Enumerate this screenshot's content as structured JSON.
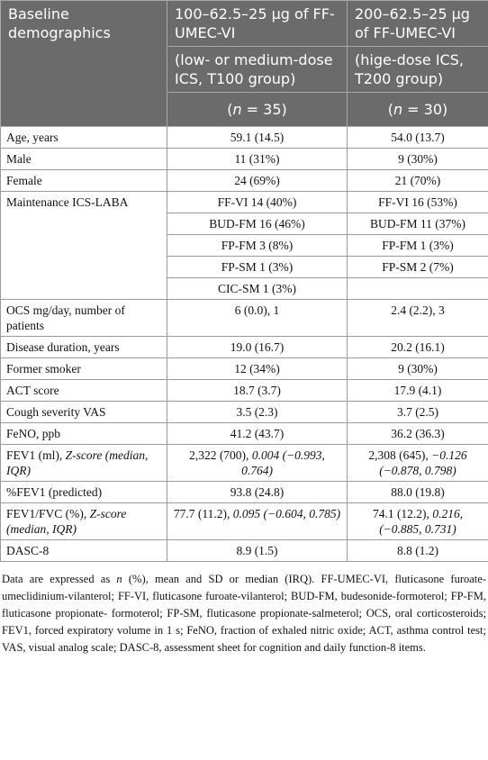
{
  "table": {
    "header": {
      "title": "Baseline demographics",
      "columns": [
        {
          "name": "100–62.5–25 µg of FF-UMEC-VI",
          "group": "(low- or medium-dose ICS, T100 group)",
          "n": [
            "(",
            {
              "italic": "n"
            },
            " = 35)"
          ]
        },
        {
          "name": "200–62.5–25 µg of FF-UMEC-VI",
          "group": "(hige-dose ICS, T200 group)",
          "n": [
            "(",
            {
              "italic": "n"
            },
            " = 30)"
          ]
        }
      ]
    },
    "rows": [
      [
        "Age, years",
        "59.1 (14.5)",
        "54.0 (13.7)"
      ],
      [
        "Male",
        "11 (31%)",
        "9 (30%)"
      ],
      [
        "Female",
        "24 (69%)",
        "21 (70%)"
      ],
      [
        "Maintenance ICS-LABA",
        {
          "lines": [
            "FF-VI 14 (40%)",
            "BUD-FM 16 (46%)",
            "FP-FM 3 (8%)",
            "FP-SM 1 (3%)",
            "CIC-SM 1 (3%)"
          ]
        },
        {
          "lines": [
            "FF-VI 16 (53%)",
            "BUD-FM 11 (37%)",
            "FP-FM 1 (3%)",
            "FP-SM 2 (7%)"
          ]
        }
      ],
      [
        "OCS mg/day, number of patients",
        "6 (0.0), 1",
        "2.4 (2.2), 3"
      ],
      [
        "Disease duration, years",
        "19.0 (16.7)",
        "20.2 (16.1)"
      ],
      [
        "Former smoker",
        "12 (34%)",
        "9 (30%)"
      ],
      [
        "ACT score",
        "18.7 (3.7)",
        "17.9 (4.1)"
      ],
      [
        "Cough severity VAS",
        "3.5 (2.3)",
        "3.7 (2.5)"
      ],
      [
        "FeNO, ppb",
        "41.2 (43.7)",
        "36.2 (36.3)"
      ],
      [
        [
          "FEV1 (ml), ",
          {
            "italic": "Z-score (median, IQR)"
          }
        ],
        [
          "2,322 (700), ",
          {
            "italic": "0.004 (−0.993, 0.764)"
          }
        ],
        [
          "2,308 (645), ",
          {
            "italic": "−0.126 (−0.878, 0.798)"
          }
        ]
      ],
      [
        "%FEV1 (predicted)",
        "93.8 (24.8)",
        "88.0 (19.8)"
      ],
      [
        [
          "FEV1/FVC (%), ",
          {
            "italic": "Z-score (median, IQR)"
          }
        ],
        [
          "77.7 (11.2), ",
          {
            "italic": "0.095 (−0.604, 0.785)"
          }
        ],
        [
          "74.1 (12.2), ",
          {
            "italic": "0.216, (−0.885, 0.731)"
          }
        ]
      ],
      [
        "DASC-8",
        "8.9 (1.5)",
        "8.8 (1.2)"
      ]
    ],
    "footnote": [
      "Data are expressed as ",
      {
        "italic": "n"
      },
      " (%), mean and SD or median (IRQ). FF-UMEC-VI, fluticasone furoate-umeclidinium-vilanterol; FF-VI, fluticasone furoate-vilanterol; BUD-FM, budesonide-formoterol; FP-FM, fluticasone propionate- formoterol; FP-SM, fluticasone propionate-salmeterol; OCS, oral corticosteroids; FEV1, forced expiratory volume in 1 s; FeNO, fraction of exhaled nitric oxide; ACT, asthma control test; VAS, visual analog scale; DASC-8, assessment sheet for cognition and daily function-8 items."
    ]
  }
}
